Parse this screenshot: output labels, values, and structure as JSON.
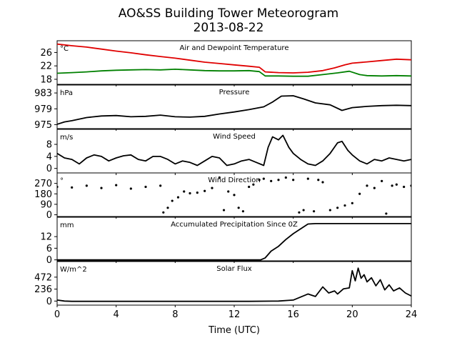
{
  "title": "AO&SS Building Tower Meteorogram",
  "subtitle": "2013-08-22",
  "chart_data": {
    "type": "line",
    "xlabel": "Time (UTC)",
    "x_ticks": [
      0,
      4,
      8,
      12,
      16,
      20,
      24
    ],
    "xlim": [
      0,
      24
    ],
    "panels": [
      {
        "title": "Air and Dewpoint Temperature",
        "unit": "°C",
        "ylim": [
          16.5,
          29.5
        ],
        "y_ticks": [
          18,
          22,
          26
        ],
        "series": [
          {
            "color": "#e00000",
            "points": [
              [
                0,
                28.5
              ],
              [
                1,
                28.0
              ],
              [
                2,
                27.6
              ],
              [
                3,
                27.0
              ],
              [
                4,
                26.4
              ],
              [
                5,
                25.9
              ],
              [
                6,
                25.3
              ],
              [
                7,
                24.8
              ],
              [
                8,
                24.3
              ],
              [
                9,
                23.7
              ],
              [
                10,
                23.1
              ],
              [
                11,
                22.7
              ],
              [
                12,
                22.3
              ],
              [
                13,
                21.9
              ],
              [
                13.7,
                21.6
              ],
              [
                14.1,
                20.2
              ],
              [
                15,
                20.0
              ],
              [
                16,
                19.9
              ],
              [
                17,
                20.1
              ],
              [
                18,
                20.6
              ],
              [
                18.8,
                21.4
              ],
              [
                19.5,
                22.3
              ],
              [
                20,
                22.8
              ],
              [
                21,
                23.2
              ],
              [
                22,
                23.6
              ],
              [
                23,
                24.0
              ],
              [
                24,
                23.8
              ]
            ]
          },
          {
            "color": "#008000",
            "points": [
              [
                0,
                19.8
              ],
              [
                1,
                20.0
              ],
              [
                2,
                20.2
              ],
              [
                3,
                20.5
              ],
              [
                4,
                20.7
              ],
              [
                5,
                20.8
              ],
              [
                6,
                20.9
              ],
              [
                7,
                20.8
              ],
              [
                8,
                21.0
              ],
              [
                9,
                20.8
              ],
              [
                10,
                20.6
              ],
              [
                11,
                20.5
              ],
              [
                12,
                20.5
              ],
              [
                13,
                20.6
              ],
              [
                13.7,
                20.3
              ],
              [
                14.1,
                19.0
              ],
              [
                15,
                19.0
              ],
              [
                16,
                18.9
              ],
              [
                17,
                18.9
              ],
              [
                18,
                19.4
              ],
              [
                19,
                19.9
              ],
              [
                19.8,
                20.4
              ],
              [
                20.5,
                19.4
              ],
              [
                21,
                19.1
              ],
              [
                22,
                19.0
              ],
              [
                23,
                19.1
              ],
              [
                24,
                19.0
              ]
            ]
          }
        ]
      },
      {
        "title": "Pressure",
        "unit": "hPa",
        "ylim": [
          974,
          985
        ],
        "y_ticks": [
          975,
          979,
          983
        ],
        "series": [
          {
            "color": "#000000",
            "points": [
              [
                0,
                975.1
              ],
              [
                0.5,
                975.7
              ],
              [
                1,
                976.0
              ],
              [
                2,
                976.8
              ],
              [
                3,
                977.2
              ],
              [
                4,
                977.3
              ],
              [
                5,
                977.0
              ],
              [
                6,
                977.1
              ],
              [
                7,
                977.4
              ],
              [
                8,
                977.0
              ],
              [
                9,
                976.9
              ],
              [
                10,
                977.1
              ],
              [
                11,
                977.7
              ],
              [
                12,
                978.2
              ],
              [
                13,
                978.8
              ],
              [
                14,
                979.5
              ],
              [
                14.6,
                980.7
              ],
              [
                15.2,
                982.2
              ],
              [
                16,
                982.3
              ],
              [
                16.7,
                981.5
              ],
              [
                17.5,
                980.5
              ],
              [
                18.5,
                980.0
              ],
              [
                19.3,
                978.6
              ],
              [
                20,
                979.3
              ],
              [
                21,
                979.6
              ],
              [
                22,
                979.8
              ],
              [
                23,
                979.9
              ],
              [
                24,
                979.8
              ]
            ]
          }
        ]
      },
      {
        "title": "Wind Speed",
        "unit": "m/s",
        "ylim": [
          -1.5,
          13
        ],
        "y_ticks": [
          0,
          4,
          8
        ],
        "series": [
          {
            "color": "#000000",
            "points": [
              [
                0,
                5.0
              ],
              [
                0.5,
                3.5
              ],
              [
                1,
                3.0
              ],
              [
                1.5,
                1.5
              ],
              [
                2,
                3.5
              ],
              [
                2.5,
                4.5
              ],
              [
                3,
                4.0
              ],
              [
                3.5,
                2.5
              ],
              [
                4,
                3.5
              ],
              [
                4.5,
                4.2
              ],
              [
                5,
                4.5
              ],
              [
                5.5,
                3.0
              ],
              [
                6,
                2.5
              ],
              [
                6.5,
                4.0
              ],
              [
                7,
                4.0
              ],
              [
                7.5,
                3.0
              ],
              [
                8,
                1.5
              ],
              [
                8.5,
                2.5
              ],
              [
                9,
                2.0
              ],
              [
                9.5,
                1.0
              ],
              [
                10,
                2.5
              ],
              [
                10.5,
                4.0
              ],
              [
                11,
                3.5
              ],
              [
                11.5,
                1.0
              ],
              [
                12,
                1.5
              ],
              [
                12.5,
                2.5
              ],
              [
                13,
                3.0
              ],
              [
                13.5,
                2.0
              ],
              [
                14,
                1.0
              ],
              [
                14.3,
                7.0
              ],
              [
                14.6,
                10.5
              ],
              [
                15,
                9.5
              ],
              [
                15.3,
                11.0
              ],
              [
                15.7,
                7.0
              ],
              [
                16,
                5.0
              ],
              [
                16.5,
                3.0
              ],
              [
                17,
                1.5
              ],
              [
                17.5,
                1.0
              ],
              [
                18,
                2.5
              ],
              [
                18.5,
                5.0
              ],
              [
                19,
                8.5
              ],
              [
                19.3,
                9.0
              ],
              [
                19.7,
                6.0
              ],
              [
                20,
                4.5
              ],
              [
                20.5,
                2.5
              ],
              [
                21,
                1.5
              ],
              [
                21.5,
                3.0
              ],
              [
                22,
                2.5
              ],
              [
                22.5,
                3.5
              ],
              [
                23,
                3.0
              ],
              [
                23.5,
                2.5
              ],
              [
                24,
                3.0
              ]
            ]
          }
        ]
      },
      {
        "title": "Wind Direction",
        "unit": "°",
        "ylim": [
          -15,
          360
        ],
        "y_ticks": [
          0,
          90,
          180,
          270
        ],
        "series": [
          {
            "color": "#000000",
            "dots": true,
            "points": [
              [
                0,
                240
              ],
              [
                1,
                235
              ],
              [
                2,
                250
              ],
              [
                3,
                230
              ],
              [
                4,
                255
              ],
              [
                5,
                225
              ],
              [
                6,
                240
              ],
              [
                7,
                250
              ],
              [
                7.2,
                20
              ],
              [
                7.5,
                60
              ],
              [
                7.8,
                120
              ],
              [
                8.2,
                150
              ],
              [
                8.6,
                200
              ],
              [
                9,
                185
              ],
              [
                9.5,
                190
              ],
              [
                10,
                205
              ],
              [
                10.5,
                230
              ],
              [
                11,
                320
              ],
              [
                11.3,
                40
              ],
              [
                11.6,
                200
              ],
              [
                12,
                170
              ],
              [
                12.3,
                60
              ],
              [
                12.6,
                30
              ],
              [
                13,
                240
              ],
              [
                13.3,
                260
              ],
              [
                13.7,
                300
              ],
              [
                14,
                310
              ],
              [
                14.5,
                290
              ],
              [
                15,
                300
              ],
              [
                15.5,
                320
              ],
              [
                16,
                300
              ],
              [
                16.4,
                20
              ],
              [
                16.7,
                40
              ],
              [
                17,
                310
              ],
              [
                17.4,
                30
              ],
              [
                17.7,
                300
              ],
              [
                18,
                280
              ],
              [
                18.5,
                40
              ],
              [
                19,
                60
              ],
              [
                19.5,
                80
              ],
              [
                20,
                100
              ],
              [
                20.5,
                180
              ],
              [
                21,
                250
              ],
              [
                21.5,
                230
              ],
              [
                22,
                290
              ],
              [
                22.3,
                10
              ],
              [
                22.7,
                250
              ],
              [
                23,
                260
              ],
              [
                23.5,
                240
              ],
              [
                24,
                250
              ]
            ]
          }
        ]
      },
      {
        "title": "Accumulated Precipitation Since 0Z",
        "unit": "mm",
        "ylim": [
          -0.5,
          22
        ],
        "y_ticks": [
          0,
          6,
          12
        ],
        "series": [
          {
            "color": "#000000",
            "points": [
              [
                0,
                0
              ],
              [
                13.8,
                0
              ],
              [
                14.1,
                1.0
              ],
              [
                14.5,
                4.5
              ],
              [
                15,
                7.0
              ],
              [
                15.5,
                10.5
              ],
              [
                16,
                13.5
              ],
              [
                16.5,
                16.0
              ],
              [
                17,
                18.5
              ],
              [
                17.5,
                18.7
              ],
              [
                24,
                18.7
              ]
            ]
          }
        ]
      },
      {
        "title": "Solar Flux",
        "unit": "W/m^2",
        "ylim": [
          -80,
          780
        ],
        "y_ticks": [
          0,
          236,
          472
        ],
        "series": [
          {
            "color": "#000000",
            "points": [
              [
                0,
                20
              ],
              [
                0.5,
                0
              ],
              [
                1,
                -5
              ],
              [
                13,
                -5
              ],
              [
                15,
                0
              ],
              [
                16,
                20
              ],
              [
                16.5,
                80
              ],
              [
                17,
                140
              ],
              [
                17.5,
                90
              ],
              [
                18,
                280
              ],
              [
                18.4,
                160
              ],
              [
                18.8,
                200
              ],
              [
                19,
                140
              ],
              [
                19.4,
                240
              ],
              [
                19.8,
                260
              ],
              [
                20,
                600
              ],
              [
                20.2,
                400
              ],
              [
                20.4,
                650
              ],
              [
                20.6,
                450
              ],
              [
                20.8,
                520
              ],
              [
                21,
                380
              ],
              [
                21.3,
                460
              ],
              [
                21.6,
                300
              ],
              [
                21.9,
                420
              ],
              [
                22.2,
                220
              ],
              [
                22.5,
                320
              ],
              [
                22.8,
                200
              ],
              [
                23.2,
                260
              ],
              [
                23.6,
                160
              ],
              [
                24,
                100
              ]
            ]
          }
        ]
      }
    ]
  }
}
